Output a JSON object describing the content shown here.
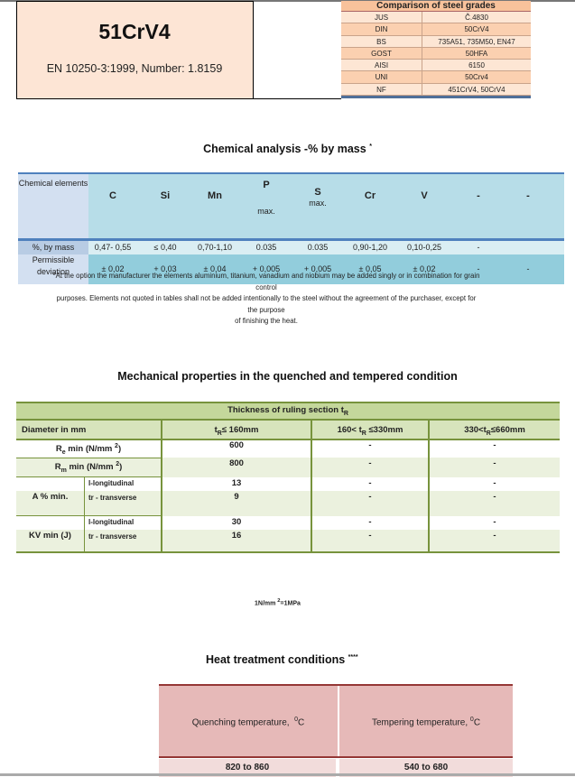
{
  "header": {
    "grade": "51CrV4",
    "standard": "EN 10250-3:1999, Number: 1.8159"
  },
  "comparison": {
    "title": "Comparison of steel grades",
    "rows": [
      {
        "std": "JUS",
        "grade": "Č.4830"
      },
      {
        "std": "DIN",
        "grade": "50CrV4"
      },
      {
        "std": "BS",
        "grade": "735A51, 735M50, EN47"
      },
      {
        "std": "GOST",
        "grade": "50HFA"
      },
      {
        "std": "AISI",
        "grade": "6150"
      },
      {
        "std": "UNI",
        "grade": "50Crv4"
      },
      {
        "std": "NF",
        "grade": "451CrV4, 50CrV4"
      }
    ]
  },
  "chemical": {
    "title": "Chemical analysis -% by mass",
    "title_mark": "*",
    "row_header": "Chemical elements",
    "elements": [
      {
        "sym": "C",
        "note": ""
      },
      {
        "sym": "Si",
        "note": ""
      },
      {
        "sym": "Mn",
        "note": ""
      },
      {
        "sym": "P",
        "note": "max."
      },
      {
        "sym": "S",
        "note": "max."
      },
      {
        "sym": "Cr",
        "note": ""
      },
      {
        "sym": "V",
        "note": ""
      },
      {
        "sym": "-",
        "note": ""
      },
      {
        "sym": "-",
        "note": ""
      }
    ],
    "mass_label": "%, by mass",
    "mass": [
      "0,47- 0,55",
      "≤ 0,40",
      "0,70-1,10",
      "0.035",
      "0.035",
      "0,90-1,20",
      "0,10-0,25",
      "-",
      ""
    ],
    "dev_label": "Permissible deviation",
    "dev": [
      "± 0,02",
      "+ 0,03",
      "± 0,04",
      "+ 0,005",
      "+ 0,005",
      "± 0,05",
      "± 0,02",
      "-",
      "-"
    ],
    "footnote": [
      "*At the option the manufacturer the elements aluminium, titanium, vanadium and niobium may be added singly or in combination for grain",
      "control",
      "purposes. Elements not quoted in tables shall not be added intentionally to the steel without the agreement of the purchaser, except for",
      "the purpose",
      "of finishing the heat."
    ]
  },
  "mechanical": {
    "title": "Mechanical properties in the quenched and tempered condition",
    "thickness": "Thickness of ruling section t",
    "thickness_sub": "R",
    "diameter": "Diameter in mm",
    "cols": [
      {
        "a": "t",
        "sub": "R",
        "b": "≤ 160mm"
      },
      {
        "a": "160< t",
        "sub": "R",
        "b": " ≤330mm"
      },
      {
        "a": "330<t",
        "sub": "R",
        "b": "≤660mm"
      }
    ],
    "re": {
      "a": "R",
      "sub": "e",
      "b": " min  (N/mm ",
      "sup": "2",
      "c": ")",
      "vals": [
        "600",
        "-",
        "-"
      ]
    },
    "rm": {
      "a": "R",
      "sub": "m",
      "b": " min (N/mm ",
      "sup": "2",
      "c": ")",
      "vals": [
        "800",
        "-",
        "-"
      ]
    },
    "a": {
      "label": "A % min.",
      "l": "l-longitudinal",
      "tr": "tr - transverse",
      "l_vals": [
        "13",
        "-",
        "-"
      ],
      "tr_vals": [
        "9",
        "-",
        "-"
      ]
    },
    "kv": {
      "label": "KV min (J)",
      "l": "l-longitudinal",
      "tr": "tr - transverse",
      "l_vals": [
        "30",
        "-",
        "-"
      ],
      "tr_vals": [
        "16",
        "-",
        "-"
      ]
    },
    "note": {
      "a": "1N/mm ",
      "sup": "2",
      "b": "=1MPa"
    }
  },
  "heat": {
    "title": "Heat treatment conditions",
    "title_mark": "****",
    "quench": "Quenching temperature,",
    "temper": "Tempering temperature,",
    "unit_sup": "0",
    "unit": "C",
    "quench_val": "820 to 860",
    "temper_val": "540 to 680"
  }
}
